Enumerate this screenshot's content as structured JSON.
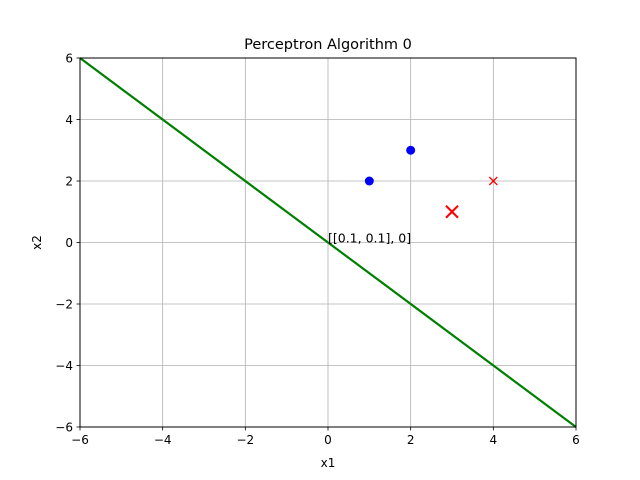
{
  "chart_data": {
    "type": "scatter",
    "title": "Perceptron Algorithm 0",
    "xlabel": "x1",
    "ylabel": "x2",
    "xlim": [
      -6,
      6
    ],
    "ylim": [
      -6,
      6
    ],
    "xticks": [
      -6,
      -4,
      -2,
      0,
      2,
      4,
      6
    ],
    "yticks": [
      -6,
      -4,
      -2,
      0,
      2,
      4,
      6
    ],
    "xtick_labels": [
      "−6",
      "−4",
      "−2",
      "0",
      "2",
      "4",
      "6"
    ],
    "ytick_labels": [
      "−6",
      "−4",
      "−2",
      "0",
      "2",
      "4",
      "6"
    ],
    "grid": true,
    "series": [
      {
        "marker": "circle",
        "color": "#0000ff",
        "points": [
          [
            1,
            2
          ],
          [
            2,
            3
          ]
        ]
      },
      {
        "marker": "x",
        "color": "#ff0000",
        "points": [
          [
            4,
            2
          ]
        ]
      },
      {
        "marker": "x-large",
        "color": "#ff0000",
        "points": [
          [
            3,
            1
          ]
        ]
      }
    ],
    "lines": [
      {
        "color": "#008000",
        "points": [
          [
            -6,
            6
          ],
          [
            6,
            -6
          ]
        ]
      }
    ],
    "annotations": [
      {
        "text": "[[0.1, 0.1], 0]",
        "x": 0,
        "y": 0
      }
    ]
  }
}
